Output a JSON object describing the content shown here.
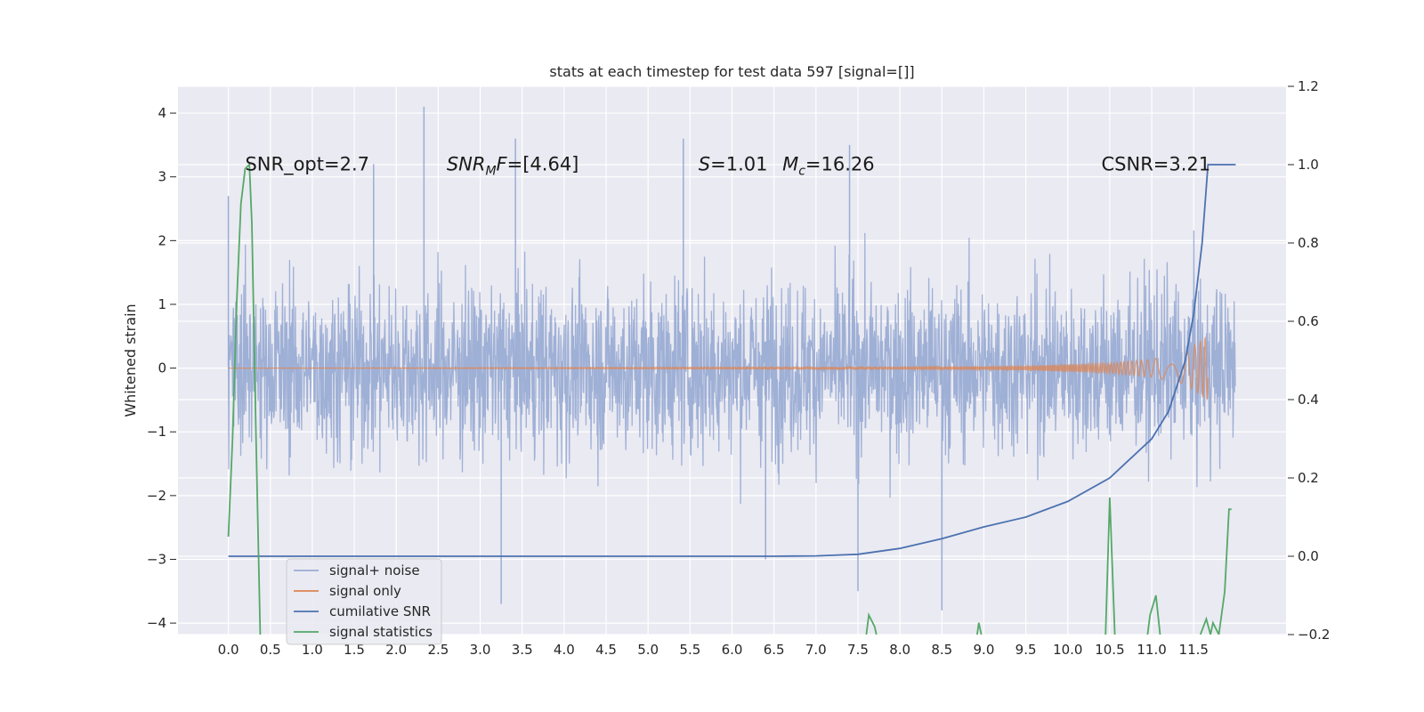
{
  "chart_data": {
    "type": "line",
    "title": "stats at each timestep for test data 597 [signal=[]]",
    "ylabel": "Whitened strain",
    "xlim": [
      -0.6,
      12.6
    ],
    "ylim": [
      -4.18,
      4.42
    ],
    "y2lim": [
      -0.2,
      1.2
    ],
    "x_ticks": [
      0.0,
      0.5,
      1.0,
      1.5,
      2.0,
      2.5,
      3.0,
      3.5,
      4.0,
      4.5,
      5.0,
      5.5,
      6.0,
      6.5,
      7.0,
      7.5,
      8.0,
      8.5,
      9.0,
      9.5,
      10.0,
      10.5,
      11.0,
      11.5
    ],
    "x_tick_labels": [
      "0.0",
      "0.5",
      "1.0",
      "1.5",
      "2.0",
      "2.5",
      "3.0",
      "3.5",
      "4.0",
      "4.5",
      "5.0",
      "5.5",
      "6.0",
      "6.5",
      "7.0",
      "7.5",
      "8.0",
      "8.5",
      "9.0",
      "9.5",
      "10.0",
      "10.5",
      "11.0",
      "11.5"
    ],
    "y_ticks": [
      -4,
      -3,
      -2,
      -1,
      0,
      1,
      2,
      3,
      4
    ],
    "y_tick_labels": [
      "−4",
      "−3",
      "−2",
      "−1",
      "0",
      "1",
      "2",
      "3",
      "4"
    ],
    "y2_ticks": [
      -0.2,
      0.0,
      0.2,
      0.4,
      0.6,
      0.8,
      1.0,
      1.2
    ],
    "y2_tick_labels": [
      "−0.2",
      "0.0",
      "0.2",
      "0.4",
      "0.6",
      "0.8",
      "1.0",
      "1.2"
    ],
    "grid": true,
    "legend_position": "lower-left",
    "annotations": [
      {
        "text": "SNR_opt=2.7",
        "x": 0.2,
        "y": 3.2
      },
      {
        "text": "SNR_MF=[4.64]",
        "x": 2.6,
        "y": 3.2
      },
      {
        "text": "S=1.01",
        "x": 5.6,
        "y": 3.2
      },
      {
        "text": "M_c=16.26",
        "x": 6.6,
        "y": 3.2
      },
      {
        "text": "CSNR=3.21",
        "x": 10.4,
        "y": 3.2
      }
    ],
    "series": [
      {
        "name": "signal+ noise",
        "axis": "left",
        "color": "#4c72b0",
        "description": "noisy whitened strain, approx. Gaussian with std ~1 over x in [0, 12]",
        "x_range": [
          0,
          12
        ],
        "typical_envelope": [
          -2.0,
          2.0
        ],
        "notable_peaks": [
          [
            0.0,
            2.7
          ],
          [
            1.73,
            3.2
          ],
          [
            2.33,
            4.1
          ],
          [
            3.42,
            3.6
          ],
          [
            5.42,
            3.6
          ],
          [
            7.4,
            3.5
          ],
          [
            8.5,
            -3.0
          ],
          [
            3.25,
            -3.7
          ],
          [
            7.5,
            -3.5
          ],
          [
            8.5,
            -3.8
          ],
          [
            6.4,
            -3.0
          ]
        ]
      },
      {
        "name": "signal only",
        "axis": "left",
        "color": "#dd8452",
        "description": "chirp signal, flat near 0 until ~9.5, amplitude grows to ~0.5 at x=11.67",
        "x_range": [
          0,
          11.67
        ],
        "amplitude_points": [
          [
            0,
            0.0
          ],
          [
            8.0,
            0.01
          ],
          [
            9.5,
            0.03
          ],
          [
            10.5,
            0.08
          ],
          [
            11.0,
            0.14
          ],
          [
            11.4,
            0.25
          ],
          [
            11.6,
            0.45
          ],
          [
            11.67,
            0.5
          ]
        ]
      },
      {
        "name": "cumilative SNR",
        "axis": "right",
        "color": "#4c72b0",
        "points": [
          [
            0,
            0.0
          ],
          [
            6.0,
            0.0
          ],
          [
            6.5,
            0.0
          ],
          [
            7.0,
            0.001
          ],
          [
            7.5,
            0.005
          ],
          [
            8.0,
            0.02
          ],
          [
            8.5,
            0.045
          ],
          [
            9.0,
            0.075
          ],
          [
            9.5,
            0.1
          ],
          [
            10.0,
            0.14
          ],
          [
            10.5,
            0.2
          ],
          [
            11.0,
            0.3
          ],
          [
            11.2,
            0.37
          ],
          [
            11.4,
            0.5
          ],
          [
            11.5,
            0.62
          ],
          [
            11.6,
            0.8
          ],
          [
            11.67,
            1.0
          ],
          [
            12.0,
            1.0
          ]
        ]
      },
      {
        "name": "signal statistics",
        "axis": "right",
        "color": "#55a868",
        "segments": [
          [
            [
              0.0,
              0.05
            ],
            [
              0.05,
              0.3
            ],
            [
              0.1,
              0.65
            ],
            [
              0.15,
              0.9
            ],
            [
              0.2,
              0.99
            ],
            [
              0.25,
              1.0
            ],
            [
              0.28,
              0.85
            ],
            [
              0.33,
              0.3
            ],
            [
              0.38,
              -0.2
            ]
          ],
          [
            [
              7.6,
              -0.2
            ],
            [
              7.63,
              -0.15
            ],
            [
              7.7,
              -0.18
            ],
            [
              7.72,
              -0.2
            ]
          ],
          [
            [
              8.92,
              -0.2
            ],
            [
              8.94,
              -0.17
            ],
            [
              8.97,
              -0.2
            ]
          ],
          [
            [
              10.45,
              -0.2
            ],
            [
              10.5,
              0.15
            ],
            [
              10.56,
              -0.2
            ]
          ],
          [
            [
              10.95,
              -0.2
            ],
            [
              10.98,
              -0.15
            ],
            [
              11.05,
              -0.1
            ],
            [
              11.1,
              -0.2
            ]
          ],
          [
            [
              11.58,
              -0.2
            ],
            [
              11.65,
              -0.16
            ],
            [
              11.7,
              -0.2
            ]
          ],
          [
            [
              11.7,
              -0.2
            ],
            [
              11.73,
              -0.17
            ],
            [
              11.8,
              -0.2
            ],
            [
              11.87,
              -0.09
            ],
            [
              11.92,
              0.12
            ],
            [
              11.95,
              0.12
            ]
          ]
        ]
      }
    ]
  }
}
